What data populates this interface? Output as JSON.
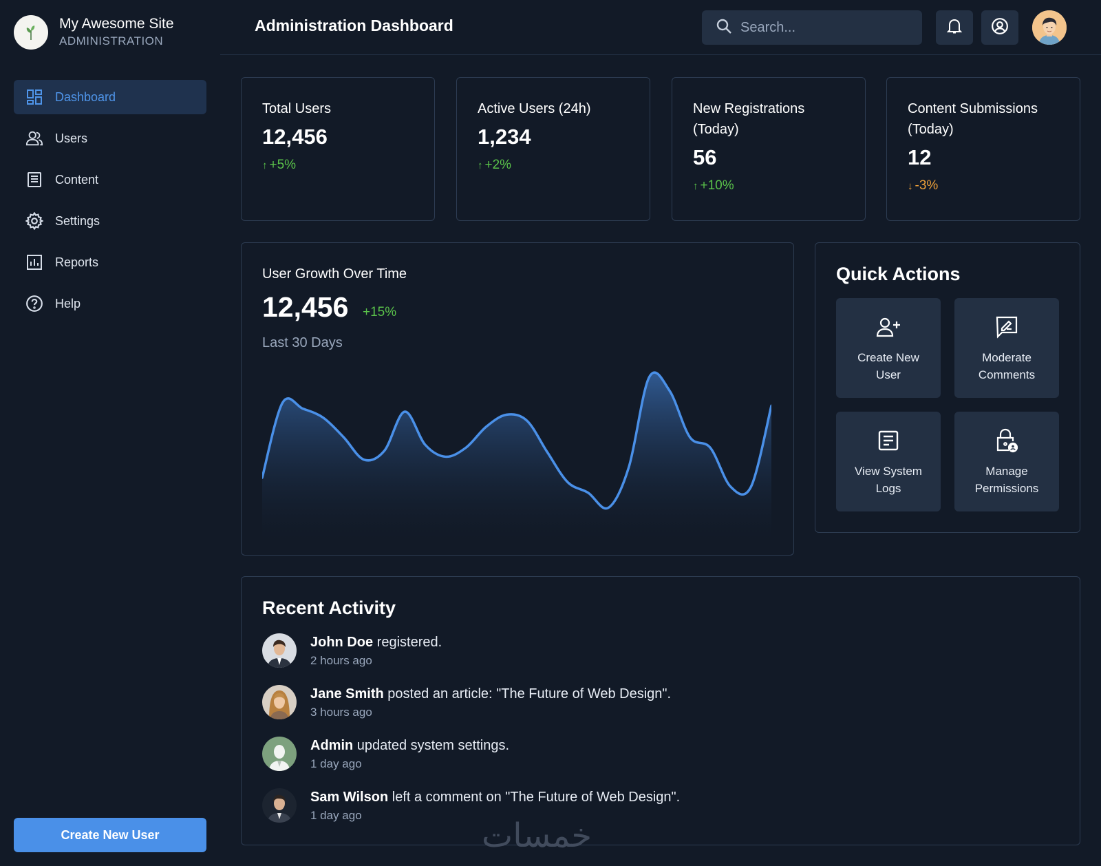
{
  "brand": {
    "name": "My Awesome Site",
    "subtitle": "ADMINISTRATION",
    "logo_icon": "sprout-icon"
  },
  "nav": [
    {
      "label": "Dashboard",
      "icon": "dashboard-icon",
      "active": true
    },
    {
      "label": "Users",
      "icon": "users-icon"
    },
    {
      "label": "Content",
      "icon": "document-icon"
    },
    {
      "label": "Settings",
      "icon": "gear-icon"
    },
    {
      "label": "Reports",
      "icon": "bar-chart-icon"
    },
    {
      "label": "Help",
      "icon": "help-icon"
    }
  ],
  "sidebar_cta": "Create New User",
  "header": {
    "title": "Administration Dashboard",
    "search_placeholder": "Search..."
  },
  "stats": [
    {
      "label": "Total Users",
      "value": "12,456",
      "change": "+5%",
      "direction": "up"
    },
    {
      "label": "Active Users (24h)",
      "value": "1,234",
      "change": "+2%",
      "direction": "up"
    },
    {
      "label": "New Registrations (Today)",
      "value": "56",
      "change": "+10%",
      "direction": "up"
    },
    {
      "label": "Content Submissions (Today)",
      "value": "12",
      "change": "-3%",
      "direction": "down"
    }
  ],
  "growth": {
    "title": "User Growth Over Time",
    "value": "12,456",
    "change": "+15%",
    "period": "Last 30 Days"
  },
  "chart_data": {
    "type": "area",
    "title": "User Growth Over Time",
    "values": [
      28,
      78,
      74,
      68,
      55,
      40,
      46,
      72,
      50,
      42,
      48,
      62,
      70,
      66,
      45,
      25,
      18,
      8,
      35,
      95,
      86,
      55,
      48,
      22,
      22,
      76
    ],
    "ylim": [
      0,
      100
    ],
    "grid": false
  },
  "quick_actions": {
    "title": "Quick Actions",
    "items": [
      {
        "label": "Create New User",
        "icon": "add-user-icon"
      },
      {
        "label": "Moderate Comments",
        "icon": "comment-edit-icon"
      },
      {
        "label": "View System Logs",
        "icon": "logs-icon"
      },
      {
        "label": "Manage Permissions",
        "icon": "lock-user-icon"
      }
    ]
  },
  "activity": {
    "title": "Recent Activity",
    "items": [
      {
        "name": "John Doe",
        "text": " registered.",
        "time": "2 hours ago",
        "avatar_color": "#d9dde3"
      },
      {
        "name": "Jane Smith",
        "text": " posted an article: \"The Future of Web Design\".",
        "time": "3 hours ago",
        "avatar_color": "#c9a887"
      },
      {
        "name": "Admin",
        "text": " updated system settings.",
        "time": "1 day ago",
        "avatar_color": "#7da17e"
      },
      {
        "name": "Sam Wilson",
        "text": " left a comment on \"The Future of Web Design\".",
        "time": "1 day ago",
        "avatar_color": "#1c2430"
      }
    ]
  },
  "watermark": "خمسات",
  "colors": {
    "accent": "#4a90e8",
    "positive": "#5ac24a",
    "negative": "#eea13a",
    "background": "#121a27",
    "panel": "#233043"
  }
}
